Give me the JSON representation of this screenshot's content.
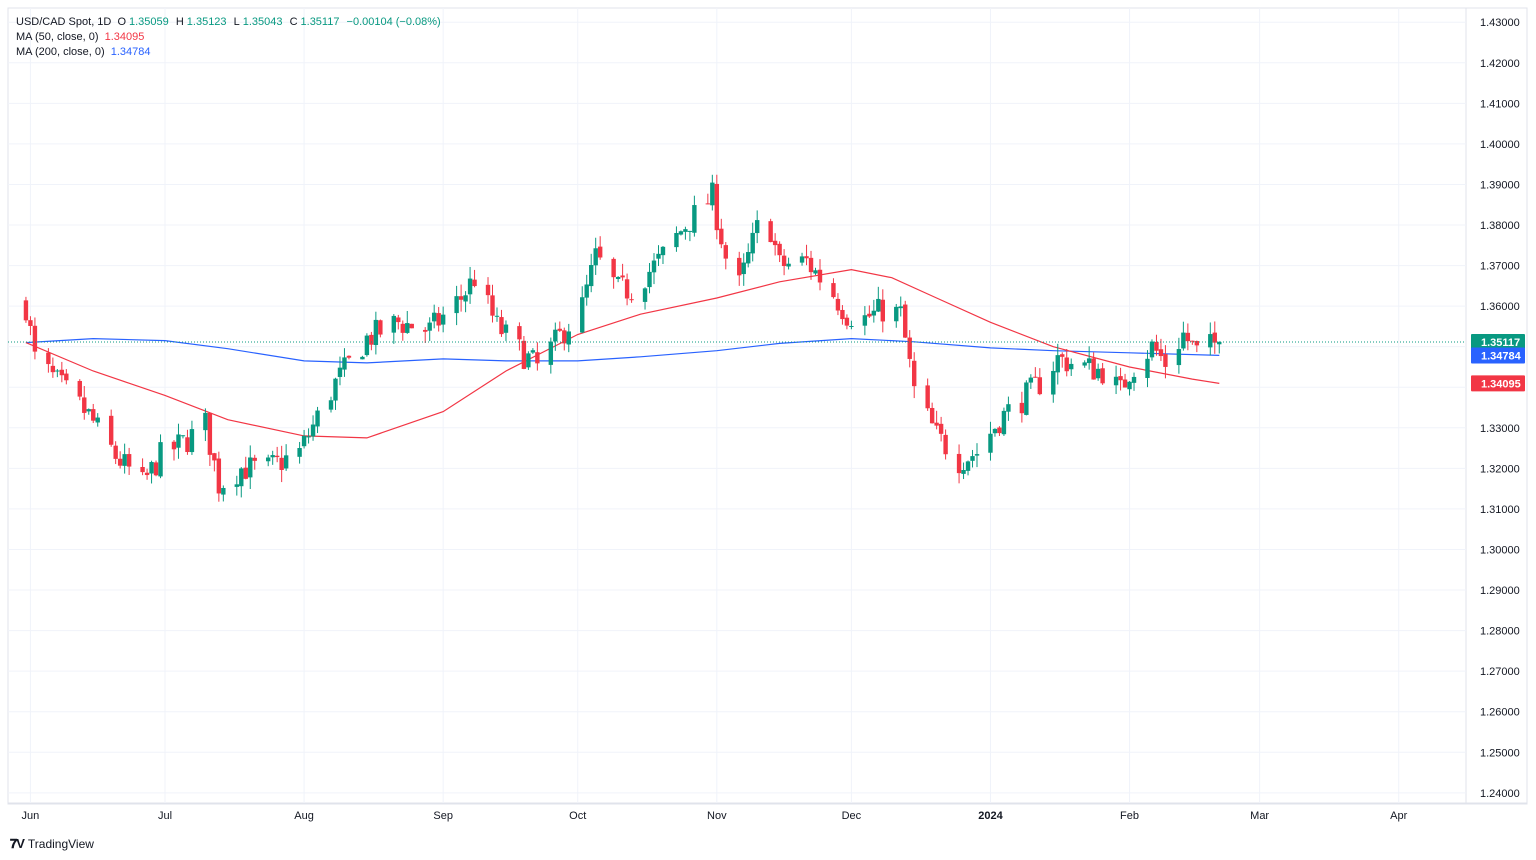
{
  "legend": {
    "symbol": "USD/CAD Spot, 1D",
    "ohlc": [
      {
        "label": "O",
        "value": "1.35059"
      },
      {
        "label": "H",
        "value": "1.35123"
      },
      {
        "label": "L",
        "value": "1.35043"
      },
      {
        "label": "C",
        "value": "1.35117"
      }
    ],
    "change": "−0.00104 (−0.08%)",
    "ma50_label": "MA (50, close, 0)",
    "ma50_value": "1.34095",
    "ma200_label": "MA (200, close, 0)",
    "ma200_value": "1.34784"
  },
  "brand": {
    "name": "TradingView",
    "icon": "tradingview-logo-icon"
  },
  "colors": {
    "up": "#089981",
    "down": "#f23645",
    "ma50": "#f23645",
    "ma200": "#2962ff",
    "grid": "#f0f3fa",
    "text": "#131722"
  },
  "chart_data": {
    "type": "candlestick",
    "title": "USD/CAD Spot, 1D",
    "y_ticks": [
      "1.43000",
      "1.42000",
      "1.41000",
      "1.40000",
      "1.39000",
      "1.38000",
      "1.37000",
      "1.36000",
      "1.35000",
      "1.34000",
      "1.33000",
      "1.32000",
      "1.31000",
      "1.30000",
      "1.29000",
      "1.28000",
      "1.27000",
      "1.26000",
      "1.25000",
      "1.24000"
    ],
    "ylim": [
      1.2375,
      1.4335
    ],
    "x_ticks": [
      "Jun",
      "Jul",
      "Aug",
      "Sep",
      "Oct",
      "Nov",
      "Dec",
      "2024",
      "Feb",
      "Mar",
      "Apr"
    ],
    "price_labels": [
      {
        "name": "last-price",
        "value": 1.35117,
        "text": "1.35117",
        "color": "#089981"
      },
      {
        "name": "ma200",
        "value": 1.34784,
        "text": "1.34784",
        "color": "#2962ff"
      },
      {
        "name": "ma50",
        "value": 1.34095,
        "text": "1.34095",
        "color": "#f23645"
      }
    ],
    "grid": true,
    "ma50_path": [
      [
        "2023-05-31",
        1.351
      ],
      [
        "2023-06-15",
        1.344
      ],
      [
        "2023-07-01",
        1.338
      ],
      [
        "2023-07-15",
        1.332
      ],
      [
        "2023-08-01",
        1.328
      ],
      [
        "2023-08-15",
        1.3275
      ],
      [
        "2023-09-01",
        1.334
      ],
      [
        "2023-09-15",
        1.344
      ],
      [
        "2023-10-01",
        1.353
      ],
      [
        "2023-10-15",
        1.358
      ],
      [
        "2023-11-01",
        1.362
      ],
      [
        "2023-11-15",
        1.366
      ],
      [
        "2023-12-01",
        1.369
      ],
      [
        "2023-12-10",
        1.367
      ],
      [
        "2023-12-20",
        1.362
      ],
      [
        "2024-01-01",
        1.356
      ],
      [
        "2024-01-15",
        1.35
      ],
      [
        "2024-02-01",
        1.345
      ],
      [
        "2024-02-15",
        1.342
      ],
      [
        "2024-02-21",
        1.34095
      ]
    ],
    "ma200_path": [
      [
        "2023-05-31",
        1.351
      ],
      [
        "2023-06-15",
        1.352
      ],
      [
        "2023-07-01",
        1.3515
      ],
      [
        "2023-07-15",
        1.3495
      ],
      [
        "2023-08-01",
        1.3465
      ],
      [
        "2023-08-15",
        1.346
      ],
      [
        "2023-09-01",
        1.347
      ],
      [
        "2023-09-15",
        1.3465
      ],
      [
        "2023-10-01",
        1.3465
      ],
      [
        "2023-10-15",
        1.3475
      ],
      [
        "2023-11-01",
        1.349
      ],
      [
        "2023-11-15",
        1.3508
      ],
      [
        "2023-12-01",
        1.352
      ],
      [
        "2023-12-15",
        1.3512
      ],
      [
        "2024-01-01",
        1.3497
      ],
      [
        "2024-01-15",
        1.349
      ],
      [
        "2024-02-01",
        1.3485
      ],
      [
        "2024-02-21",
        1.34784
      ]
    ],
    "anchors": [
      [
        "2023-05-31",
        1.36
      ],
      [
        "2023-06-02",
        1.347
      ],
      [
        "2023-06-08",
        1.34
      ],
      [
        "2023-06-14",
        1.333
      ],
      [
        "2023-06-20",
        1.323
      ],
      [
        "2023-06-26",
        1.316
      ],
      [
        "2023-06-30",
        1.323
      ],
      [
        "2023-07-06",
        1.327
      ],
      [
        "2023-07-10",
        1.331
      ],
      [
        "2023-07-13",
        1.316
      ],
      [
        "2023-07-18",
        1.32
      ],
      [
        "2023-07-24",
        1.32
      ],
      [
        "2023-07-31",
        1.324
      ],
      [
        "2023-08-08",
        1.341
      ],
      [
        "2023-08-15",
        1.352
      ],
      [
        "2023-08-22",
        1.356
      ],
      [
        "2023-08-29",
        1.354
      ],
      [
        "2023-09-05",
        1.362
      ],
      [
        "2023-09-08",
        1.367
      ],
      [
        "2023-09-13",
        1.355
      ],
      [
        "2023-09-19",
        1.348
      ],
      [
        "2023-09-22",
        1.345
      ],
      [
        "2023-09-28",
        1.354
      ],
      [
        "2023-10-02",
        1.36
      ],
      [
        "2023-10-05",
        1.372
      ],
      [
        "2023-10-10",
        1.364
      ],
      [
        "2023-10-13",
        1.364
      ],
      [
        "2023-10-19",
        1.371
      ],
      [
        "2023-10-25",
        1.38
      ],
      [
        "2023-10-31",
        1.387
      ],
      [
        "2023-11-03",
        1.372
      ],
      [
        "2023-11-06",
        1.365
      ],
      [
        "2023-11-10",
        1.379
      ],
      [
        "2023-11-13",
        1.379
      ],
      [
        "2023-11-15",
        1.37
      ],
      [
        "2023-11-21",
        1.371
      ],
      [
        "2023-11-27",
        1.363
      ],
      [
        "2023-11-30",
        1.358
      ],
      [
        "2023-12-04",
        1.357
      ],
      [
        "2023-12-08",
        1.359
      ],
      [
        "2023-12-12",
        1.358
      ],
      [
        "2023-12-15",
        1.339
      ],
      [
        "2023-12-20",
        1.328
      ],
      [
        "2023-12-25",
        1.322
      ],
      [
        "2023-12-29",
        1.324
      ],
      [
        "2024-01-03",
        1.332
      ],
      [
        "2024-01-08",
        1.337
      ],
      [
        "2024-01-12",
        1.341
      ],
      [
        "2024-01-16",
        1.347
      ],
      [
        "2024-01-22",
        1.345
      ],
      [
        "2024-01-26",
        1.344
      ],
      [
        "2024-01-30",
        1.339
      ],
      [
        "2024-02-01",
        1.344
      ],
      [
        "2024-02-06",
        1.35
      ],
      [
        "2024-02-09",
        1.346
      ],
      [
        "2024-02-13",
        1.353
      ],
      [
        "2024-02-16",
        1.3485
      ],
      [
        "2024-02-21",
        1.3512
      ]
    ]
  }
}
